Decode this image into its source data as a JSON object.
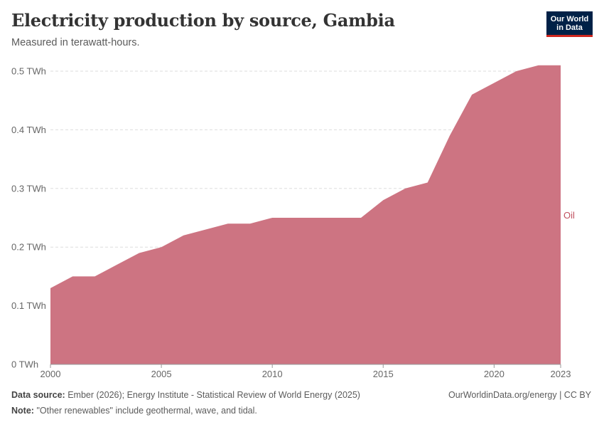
{
  "header": {
    "title": "Electricity production by source, Gambia",
    "subtitle": "Measured in terawatt-hours."
  },
  "logo": {
    "line1": "Our World",
    "line2": "in Data"
  },
  "footer": {
    "source_label": "Data source:",
    "source_text": "Ember (2026); Energy Institute - Statistical Review of World Energy (2025)",
    "note_label": "Note:",
    "note_text": "\"Other renewables\" include geothermal, wave, and tidal.",
    "link": "OurWorldinData.org/energy | CC BY"
  },
  "colors": {
    "oil": "#cd7482",
    "label_oil": "#c0505f",
    "grid": "#dddddd",
    "axis": "#666666"
  },
  "chart_data": {
    "type": "area",
    "title": "Electricity production by source, Gambia",
    "subtitle": "Measured in terawatt-hours.",
    "xlim": [
      2000,
      2023
    ],
    "ylim": [
      0,
      0.5
    ],
    "grid": "horizontal dashed",
    "x_ticks": [
      {
        "value": 2000,
        "label": "2000"
      },
      {
        "value": 2005,
        "label": "2005"
      },
      {
        "value": 2010,
        "label": "2010"
      },
      {
        "value": 2015,
        "label": "2015"
      },
      {
        "value": 2020,
        "label": "2020"
      },
      {
        "value": 2023,
        "label": "2023"
      }
    ],
    "y_ticks": [
      {
        "value": 0,
        "label": "0 TWh"
      },
      {
        "value": 0.1,
        "label": "0.1 TWh"
      },
      {
        "value": 0.2,
        "label": "0.2 TWh"
      },
      {
        "value": 0.3,
        "label": "0.3 TWh"
      },
      {
        "value": 0.4,
        "label": "0.4 TWh"
      },
      {
        "value": 0.5,
        "label": "0.5 TWh"
      }
    ],
    "x": [
      2000,
      2001,
      2002,
      2003,
      2004,
      2005,
      2006,
      2007,
      2008,
      2009,
      2010,
      2011,
      2012,
      2013,
      2014,
      2015,
      2016,
      2017,
      2018,
      2019,
      2020,
      2021,
      2022,
      2023
    ],
    "series": [
      {
        "name": "Oil",
        "values": [
          0.13,
          0.15,
          0.15,
          0.17,
          0.19,
          0.2,
          0.22,
          0.23,
          0.24,
          0.24,
          0.25,
          0.25,
          0.25,
          0.25,
          0.25,
          0.28,
          0.3,
          0.31,
          0.39,
          0.46,
          0.48,
          0.5,
          0.51,
          0.51
        ]
      }
    ]
  }
}
